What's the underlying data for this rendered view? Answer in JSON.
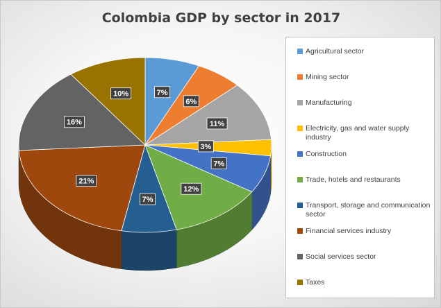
{
  "chart_data": {
    "type": "pie",
    "title": "Colombia GDP by sector in 2017",
    "legend_position": "right",
    "three_d": true,
    "slices": [
      {
        "label": "Agricultural sector",
        "value": 7,
        "value_label": "7%",
        "color": "#5b9bd5"
      },
      {
        "label": "Mining sector",
        "value": 6,
        "value_label": "6%",
        "color": "#ed7d31"
      },
      {
        "label": "Manufacturing",
        "value": 11,
        "value_label": "11%",
        "color": "#a5a5a5"
      },
      {
        "label": "Electricity, gas and water supply industry",
        "value": 3,
        "value_label": "3%",
        "color": "#ffc000"
      },
      {
        "label": "Construction",
        "value": 7,
        "value_label": "7%",
        "color": "#4472c4"
      },
      {
        "label": "Trade, hotels and restaurants",
        "value": 12,
        "value_label": "12%",
        "color": "#70ad47"
      },
      {
        "label": "Transport, storage and communication sector",
        "value": 7,
        "value_label": "7%",
        "color": "#255e91"
      },
      {
        "label": "Financial services industry",
        "value": 21,
        "value_label": "21%",
        "color": "#9e480e"
      },
      {
        "label": "Social services sector",
        "value": 16,
        "value_label": "16%",
        "color": "#636363"
      },
      {
        "label": "Taxes",
        "value": 10,
        "value_label": "10%",
        "color": "#997300"
      }
    ]
  }
}
